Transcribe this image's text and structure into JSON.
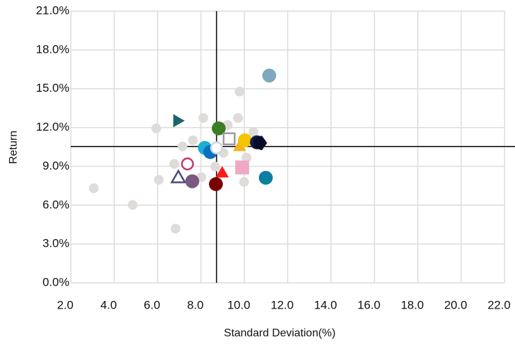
{
  "chart_data": {
    "type": "scatter",
    "xlabel": "Standard Deviation(%)",
    "ylabel": "Return",
    "xlim": [
      2.0,
      22.0
    ],
    "xticks": [
      {
        "value": 2,
        "label": "2.0"
      },
      {
        "value": 4,
        "label": "4.0"
      },
      {
        "value": 6,
        "label": "6.0"
      },
      {
        "value": 8,
        "label": "8.0"
      },
      {
        "value": 10,
        "label": "10.0"
      },
      {
        "value": 12,
        "label": "12.0"
      },
      {
        "value": 14,
        "label": "14.0"
      },
      {
        "value": 16,
        "label": "16.0"
      },
      {
        "value": 18,
        "label": "18.0"
      },
      {
        "value": 20,
        "label": "20.0"
      },
      {
        "value": 22,
        "label": "22.0"
      }
    ],
    "ylim": [
      0,
      21
    ],
    "yticks": [
      {
        "value": 0,
        "label": "0.0%"
      },
      {
        "value": 3,
        "label": "3.0%"
      },
      {
        "value": 6,
        "label": "6.0%"
      },
      {
        "value": 9,
        "label": "9.0%"
      },
      {
        "value": 12,
        "label": "12.0%"
      },
      {
        "value": 15,
        "label": "15.0%"
      },
      {
        "value": 18,
        "label": "18.0%"
      },
      {
        "value": 21,
        "label": "21.0%"
      }
    ],
    "grid": true,
    "crosshair": {
      "x": 8.72,
      "y": 10.54
    },
    "series": [
      {
        "color": "#dedbd9",
        "marker": "dot",
        "x": [
          3.06,
          4.85,
          5.94,
          6.06,
          6.83,
          6.77,
          7.15,
          7.63,
          8.11,
          9.78,
          9.71,
          9.23,
          9.04,
          8.66,
          9.99,
          10.42,
          10.1,
          8.02
        ],
        "values": [
          7.31,
          6.02,
          11.94,
          7.96,
          4.19,
          9.19,
          10.54,
          11.02,
          12.74,
          14.78,
          12.74,
          12.2,
          10.05,
          8.98,
          7.8,
          11.67,
          9.68,
          8.17
        ]
      },
      {
        "color": "#7fa7bd",
        "marker": "circle",
        "x": [
          11.15
        ],
        "values": [
          16.02
        ]
      },
      {
        "color": "#1d6468",
        "marker": "triangle-right",
        "x": [
          6.9
        ],
        "values": [
          12.53
        ]
      },
      {
        "color": "#3a7d22",
        "marker": "circle",
        "x": [
          8.82
        ],
        "values": [
          11.94
        ]
      },
      {
        "color": "#9a9a9a",
        "marker": "square-open",
        "x": [
          9.3
        ],
        "values": [
          11.13
        ]
      },
      {
        "color": "#f5b41e",
        "marker": "triangle",
        "x": [
          9.78
        ],
        "values": [
          10.48
        ]
      },
      {
        "color": "#f5c400",
        "marker": "circle",
        "x": [
          10.03
        ],
        "values": [
          11.02
        ]
      },
      {
        "color": "#0d1f4d",
        "marker": "circle",
        "x": [
          10.58
        ],
        "values": [
          10.86
        ]
      },
      {
        "color": "#0a0a2a",
        "marker": "pentagon",
        "x": [
          10.7
        ],
        "values": [
          10.81
        ]
      },
      {
        "color": "#1aafd0",
        "marker": "circle",
        "x": [
          8.18
        ],
        "values": [
          10.43
        ]
      },
      {
        "color": "#0a6fc2",
        "marker": "circle",
        "x": [
          8.43
        ],
        "values": [
          10.11
        ]
      },
      {
        "color": "#c8d8e0",
        "marker": "circle-open",
        "x": [
          8.72
        ],
        "values": [
          10.43
        ]
      },
      {
        "color": "#c2386f",
        "marker": "circle-open",
        "x": [
          7.38
        ],
        "values": [
          9.19
        ]
      },
      {
        "color": "#f0a8c4",
        "marker": "square",
        "x": [
          9.9
        ],
        "values": [
          8.92
        ]
      },
      {
        "color": "#0f7fa0",
        "marker": "circle",
        "x": [
          10.99
        ],
        "values": [
          8.12
        ]
      },
      {
        "color": "#ff1a1a",
        "marker": "triangle",
        "x": [
          8.98
        ],
        "values": [
          8.44
        ]
      },
      {
        "color": "#4a4a78",
        "marker": "triangle-open",
        "x": [
          6.96
        ],
        "values": [
          8.06
        ]
      },
      {
        "color": "#7a5a7f",
        "marker": "circle",
        "x": [
          7.6
        ],
        "values": [
          7.85
        ]
      },
      {
        "color": "#7a0000",
        "marker": "circle",
        "x": [
          8.69
        ],
        "values": [
          7.63
        ]
      }
    ]
  }
}
